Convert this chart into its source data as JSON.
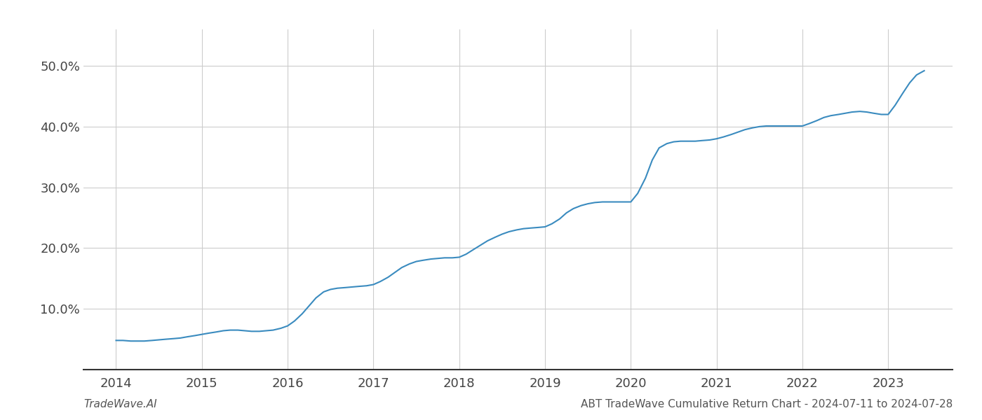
{
  "title": "",
  "footer_left": "TradeWave.AI",
  "footer_right": "ABT TradeWave Cumulative Return Chart - 2024-07-11 to 2024-07-28",
  "line_color": "#3a8bbf",
  "line_width": 1.5,
  "background_color": "#ffffff",
  "grid_color": "#cccccc",
  "x_values": [
    2014.0,
    2014.08,
    2014.17,
    2014.25,
    2014.33,
    2014.42,
    2014.5,
    2014.58,
    2014.67,
    2014.75,
    2014.83,
    2014.92,
    2015.0,
    2015.08,
    2015.17,
    2015.25,
    2015.33,
    2015.42,
    2015.5,
    2015.58,
    2015.67,
    2015.75,
    2015.83,
    2015.92,
    2016.0,
    2016.08,
    2016.17,
    2016.25,
    2016.33,
    2016.42,
    2016.5,
    2016.58,
    2016.67,
    2016.75,
    2016.83,
    2016.92,
    2017.0,
    2017.08,
    2017.17,
    2017.25,
    2017.33,
    2017.42,
    2017.5,
    2017.58,
    2017.67,
    2017.75,
    2017.83,
    2017.92,
    2018.0,
    2018.08,
    2018.17,
    2018.25,
    2018.33,
    2018.42,
    2018.5,
    2018.58,
    2018.67,
    2018.75,
    2018.83,
    2018.92,
    2019.0,
    2019.08,
    2019.17,
    2019.25,
    2019.33,
    2019.42,
    2019.5,
    2019.58,
    2019.67,
    2019.75,
    2019.83,
    2019.92,
    2020.0,
    2020.08,
    2020.17,
    2020.25,
    2020.33,
    2020.42,
    2020.5,
    2020.58,
    2020.67,
    2020.75,
    2020.83,
    2020.92,
    2021.0,
    2021.08,
    2021.17,
    2021.25,
    2021.33,
    2021.42,
    2021.5,
    2021.58,
    2021.67,
    2021.75,
    2021.83,
    2021.92,
    2022.0,
    2022.08,
    2022.17,
    2022.25,
    2022.33,
    2022.42,
    2022.5,
    2022.58,
    2022.67,
    2022.75,
    2022.83,
    2022.92,
    2023.0,
    2023.08,
    2023.17,
    2023.25,
    2023.33,
    2023.42
  ],
  "y_values": [
    4.8,
    4.8,
    4.7,
    4.7,
    4.7,
    4.8,
    4.9,
    5.0,
    5.1,
    5.2,
    5.4,
    5.6,
    5.8,
    6.0,
    6.2,
    6.4,
    6.5,
    6.5,
    6.4,
    6.3,
    6.3,
    6.4,
    6.5,
    6.8,
    7.2,
    8.0,
    9.2,
    10.5,
    11.8,
    12.8,
    13.2,
    13.4,
    13.5,
    13.6,
    13.7,
    13.8,
    14.0,
    14.5,
    15.2,
    16.0,
    16.8,
    17.4,
    17.8,
    18.0,
    18.2,
    18.3,
    18.4,
    18.4,
    18.5,
    19.0,
    19.8,
    20.5,
    21.2,
    21.8,
    22.3,
    22.7,
    23.0,
    23.2,
    23.3,
    23.4,
    23.5,
    24.0,
    24.8,
    25.8,
    26.5,
    27.0,
    27.3,
    27.5,
    27.6,
    27.6,
    27.6,
    27.6,
    27.6,
    29.0,
    31.5,
    34.5,
    36.5,
    37.2,
    37.5,
    37.6,
    37.6,
    37.6,
    37.7,
    37.8,
    38.0,
    38.3,
    38.7,
    39.1,
    39.5,
    39.8,
    40.0,
    40.1,
    40.1,
    40.1,
    40.1,
    40.1,
    40.1,
    40.5,
    41.0,
    41.5,
    41.8,
    42.0,
    42.2,
    42.4,
    42.5,
    42.4,
    42.2,
    42.0,
    42.0,
    43.5,
    45.5,
    47.2,
    48.5,
    49.2
  ],
  "xlim": [
    2013.62,
    2023.75
  ],
  "ylim": [
    0,
    56
  ],
  "yticks": [
    10,
    20,
    30,
    40,
    50
  ],
  "ytick_labels": [
    "10.0%",
    "20.0%",
    "30.0%",
    "40.0%",
    "50.0%"
  ],
  "xticks": [
    2014,
    2015,
    2016,
    2017,
    2018,
    2019,
    2020,
    2021,
    2022,
    2023
  ],
  "xtick_labels": [
    "2014",
    "2015",
    "2016",
    "2017",
    "2018",
    "2019",
    "2020",
    "2021",
    "2022",
    "2023"
  ],
  "tick_fontsize": 13,
  "footer_fontsize": 11
}
